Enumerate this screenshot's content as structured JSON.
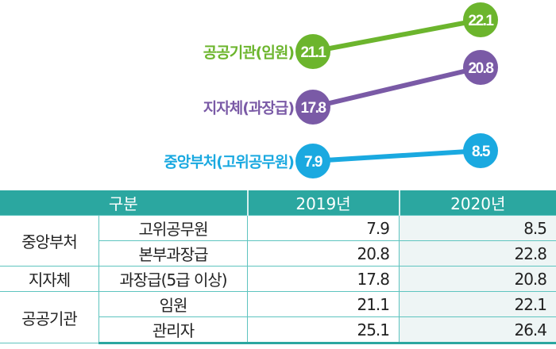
{
  "chart_data": {
    "type": "line",
    "x": [
      "2019",
      "2020"
    ],
    "series": [
      {
        "name": "공공기관(임원)",
        "values": [
          21.1,
          22.1
        ],
        "color": "#6cb52d"
      },
      {
        "name": "지자체(과장급)",
        "values": [
          17.8,
          20.8
        ],
        "color": "#7a5aa6"
      },
      {
        "name": "중앙부처(고위공무원)",
        "values": [
          7.9,
          8.5
        ],
        "color": "#1aa9e0"
      }
    ]
  },
  "table": {
    "headers": [
      "구분",
      "2019년",
      "2020년"
    ],
    "groups": [
      "중앙부처",
      "지자체",
      "공공기관"
    ],
    "rows": [
      {
        "item": "고위공무원",
        "y2019": "7.9",
        "y2020": "8.5"
      },
      {
        "item": "본부과장급",
        "y2019": "20.8",
        "y2020": "22.8"
      },
      {
        "item": "과장급(5급 이상)",
        "y2019": "17.8",
        "y2020": "20.8"
      },
      {
        "item": "임원",
        "y2019": "21.1",
        "y2020": "22.1"
      },
      {
        "item": "관리자",
        "y2019": "25.1",
        "y2020": "26.4"
      }
    ]
  }
}
